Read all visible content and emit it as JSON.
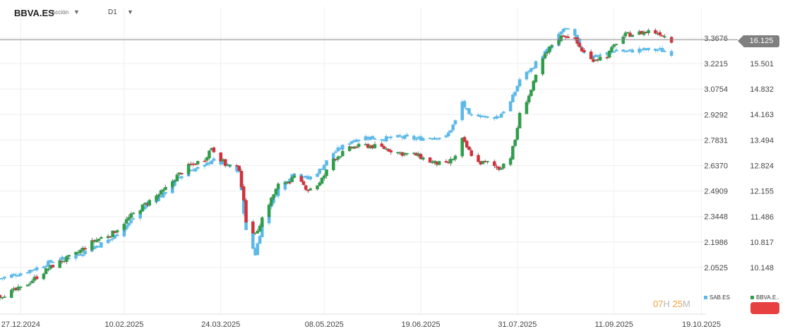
{
  "header": {
    "symbol": "BBVA.ES",
    "type": "Acción",
    "timeframe": "D1"
  },
  "current_price_label": "16.125",
  "timer": {
    "h": "07",
    "h_unit": "H",
    "m": "25",
    "m_unit": "M"
  },
  "legend": {
    "series1": "SAB.ES",
    "series2": "BBVA.E.."
  },
  "colors": {
    "up": "#2e9e4a",
    "down": "#d4303b",
    "sab": "#5bb8e8",
    "grid": "#eeeeee",
    "price_line": "#888888",
    "accent": "#e74040"
  },
  "chart_data": {
    "type": "candlestick",
    "x_range": [
      "2024-12-18",
      "2025-10-21"
    ],
    "x_ticks": [
      "27.12.2024",
      "10.02.2025",
      "24.03.2025",
      "08.05.2025",
      "19.06.2025",
      "31.07.2025",
      "11.09.2025",
      "19.10.2025"
    ],
    "y_ticks_left": [
      "3.3676",
      "3.2215",
      "3.0754",
      "2.9292",
      "2.7831",
      "2.6370",
      "2.4909",
      "2.3448",
      "2.1986",
      "2.0525"
    ],
    "y_ticks_right": [
      "15.501",
      "14.832",
      "14.163",
      "13.494",
      "12.824",
      "12.155",
      "11.486",
      "10.817",
      "10.148"
    ],
    "grid": true,
    "current_price": 16.125,
    "series": [
      {
        "name": "BBVA.E..",
        "axis": "right",
        "close_path": [
          [
            "2024-12-18",
            9.4
          ],
          [
            "2024-12-27",
            9.6
          ],
          [
            "2025-01-03",
            9.9
          ],
          [
            "2025-01-10",
            10.2
          ],
          [
            "2025-01-20",
            10.5
          ],
          [
            "2025-01-28",
            10.85
          ],
          [
            "2025-02-05",
            11.05
          ],
          [
            "2025-02-13",
            11.5
          ],
          [
            "2025-02-20",
            11.85
          ],
          [
            "2025-02-27",
            12.15
          ],
          [
            "2025-03-05",
            12.55
          ],
          [
            "2025-03-10",
            12.8
          ],
          [
            "2025-03-17",
            13.0
          ],
          [
            "2025-03-20",
            13.3
          ],
          [
            "2025-03-26",
            12.85
          ],
          [
            "2025-04-01",
            12.75
          ],
          [
            "2025-04-04",
            11.4
          ],
          [
            "2025-04-08",
            11.0
          ],
          [
            "2025-04-12",
            11.6
          ],
          [
            "2025-04-18",
            12.3
          ],
          [
            "2025-04-25",
            12.5
          ],
          [
            "2025-05-01",
            12.2
          ],
          [
            "2025-05-06",
            12.35
          ],
          [
            "2025-05-12",
            13.0
          ],
          [
            "2025-05-20",
            13.3
          ],
          [
            "2025-05-26",
            13.35
          ],
          [
            "2025-06-02",
            13.3
          ],
          [
            "2025-06-10",
            13.15
          ],
          [
            "2025-06-17",
            13.1
          ],
          [
            "2025-06-24",
            12.9
          ],
          [
            "2025-06-30",
            12.85
          ],
          [
            "2025-07-04",
            13.05
          ],
          [
            "2025-07-07",
            13.5
          ],
          [
            "2025-07-10",
            13.2
          ],
          [
            "2025-07-14",
            12.9
          ],
          [
            "2025-07-18",
            12.9
          ],
          [
            "2025-07-23",
            12.75
          ],
          [
            "2025-07-28",
            13.05
          ],
          [
            "2025-07-30",
            13.5
          ],
          [
            "2025-08-01",
            14.15
          ],
          [
            "2025-08-06",
            14.8
          ],
          [
            "2025-08-10",
            15.5
          ],
          [
            "2025-08-15",
            16.0
          ],
          [
            "2025-08-20",
            16.25
          ],
          [
            "2025-08-24",
            16.2
          ],
          [
            "2025-08-28",
            15.85
          ],
          [
            "2025-09-01",
            15.6
          ],
          [
            "2025-09-08",
            15.7
          ],
          [
            "2025-09-12",
            16.05
          ],
          [
            "2025-09-16",
            16.25
          ],
          [
            "2025-09-22",
            16.3
          ],
          [
            "2025-09-26",
            16.35
          ],
          [
            "2025-10-01",
            16.3
          ],
          [
            "2025-10-06",
            16.1
          ]
        ]
      },
      {
        "name": "SAB.ES",
        "axis": "left",
        "close_path": [
          [
            "2024-12-18",
            1.99
          ],
          [
            "2024-12-27",
            2.02
          ],
          [
            "2025-01-03",
            2.05
          ],
          [
            "2025-01-10",
            2.09
          ],
          [
            "2025-01-20",
            2.12
          ],
          [
            "2025-01-28",
            2.17
          ],
          [
            "2025-02-05",
            2.22
          ],
          [
            "2025-02-13",
            2.32
          ],
          [
            "2025-02-20",
            2.42
          ],
          [
            "2025-02-27",
            2.47
          ],
          [
            "2025-03-05",
            2.56
          ],
          [
            "2025-03-10",
            2.61
          ],
          [
            "2025-03-17",
            2.63
          ],
          [
            "2025-03-20",
            2.67
          ],
          [
            "2025-03-26",
            2.64
          ],
          [
            "2025-04-01",
            2.6
          ],
          [
            "2025-04-04",
            2.26
          ],
          [
            "2025-04-08",
            2.13
          ],
          [
            "2025-04-12",
            2.36
          ],
          [
            "2025-04-18",
            2.5
          ],
          [
            "2025-04-25",
            2.6
          ],
          [
            "2025-05-01",
            2.56
          ],
          [
            "2025-05-06",
            2.61
          ],
          [
            "2025-05-12",
            2.71
          ],
          [
            "2025-05-20",
            2.78
          ],
          [
            "2025-05-26",
            2.8
          ],
          [
            "2025-06-02",
            2.79
          ],
          [
            "2025-06-10",
            2.8
          ],
          [
            "2025-06-17",
            2.79
          ],
          [
            "2025-06-24",
            2.8
          ],
          [
            "2025-06-30",
            2.8
          ],
          [
            "2025-07-04",
            2.89
          ],
          [
            "2025-07-07",
            3.0
          ],
          [
            "2025-07-10",
            2.92
          ],
          [
            "2025-07-14",
            2.93
          ],
          [
            "2025-07-18",
            2.91
          ],
          [
            "2025-07-23",
            2.92
          ],
          [
            "2025-07-28",
            3.0
          ],
          [
            "2025-07-30",
            3.06
          ],
          [
            "2025-08-01",
            3.13
          ],
          [
            "2025-08-06",
            3.19
          ],
          [
            "2025-08-10",
            3.26
          ],
          [
            "2025-08-15",
            3.32
          ],
          [
            "2025-08-20",
            3.42
          ],
          [
            "2025-08-24",
            3.4
          ],
          [
            "2025-08-28",
            3.3
          ],
          [
            "2025-09-01",
            3.26
          ],
          [
            "2025-09-08",
            3.28
          ],
          [
            "2025-09-12",
            3.3
          ],
          [
            "2025-09-16",
            3.29
          ],
          [
            "2025-09-22",
            3.3
          ],
          [
            "2025-09-26",
            3.3
          ],
          [
            "2025-10-01",
            3.3
          ],
          [
            "2025-10-06",
            3.28
          ]
        ]
      }
    ]
  }
}
